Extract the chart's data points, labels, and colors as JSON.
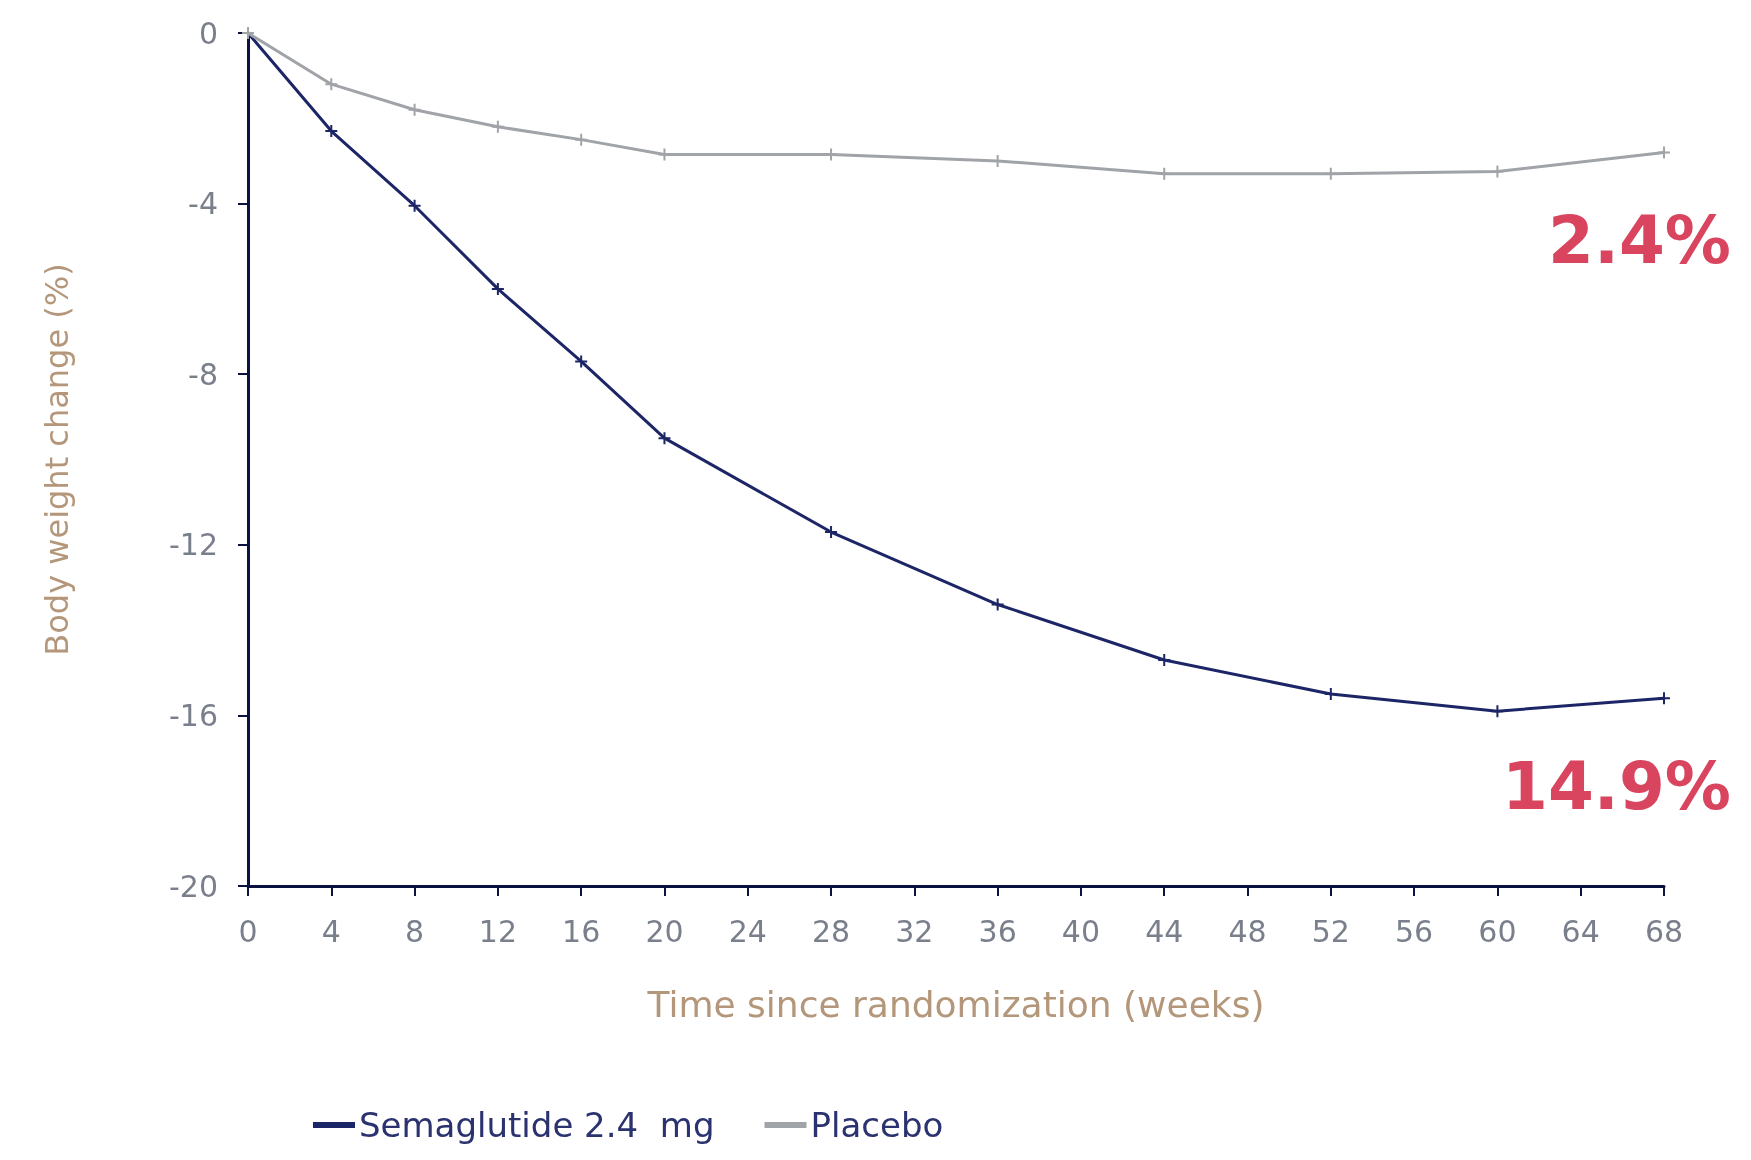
{
  "chart_data": {
    "type": "line",
    "xlabel": "Time since randomization (weeks)",
    "ylabel": "Body weight change (%)",
    "x": [
      0,
      4,
      8,
      12,
      16,
      20,
      28,
      36,
      44,
      52,
      60,
      68
    ],
    "series": [
      {
        "name": "Semaglutide 2.4  mg",
        "color": "#1c2565",
        "values": [
          0,
          -2.3,
          -4.05,
          -6.0,
          -7.7,
          -9.5,
          -11.7,
          -13.4,
          -14.7,
          -15.5,
          -15.9,
          -15.6
        ]
      },
      {
        "name": "Placebo",
        "color": "#a0a3a8",
        "values": [
          0,
          -1.2,
          -1.8,
          -2.2,
          -2.5,
          -2.85,
          -2.85,
          -3.0,
          -3.3,
          -3.3,
          -3.25,
          -2.8
        ]
      }
    ],
    "xlim": [
      0,
      68
    ],
    "xticks": [
      0,
      4,
      8,
      12,
      16,
      20,
      24,
      28,
      32,
      36,
      40,
      44,
      48,
      52,
      56,
      60,
      64,
      68
    ],
    "ylim": [
      -20,
      0
    ],
    "yticks": [
      -20,
      -16,
      -12,
      -8,
      -4,
      0
    ],
    "grid": false,
    "legend": "bottom left",
    "marker": "cross",
    "line_style": "solid",
    "annotations": [
      {
        "text": "2.4%",
        "x": 68,
        "y": -2.8
      },
      {
        "text": "14.9%",
        "x": 68,
        "y": -15.6
      }
    ]
  }
}
